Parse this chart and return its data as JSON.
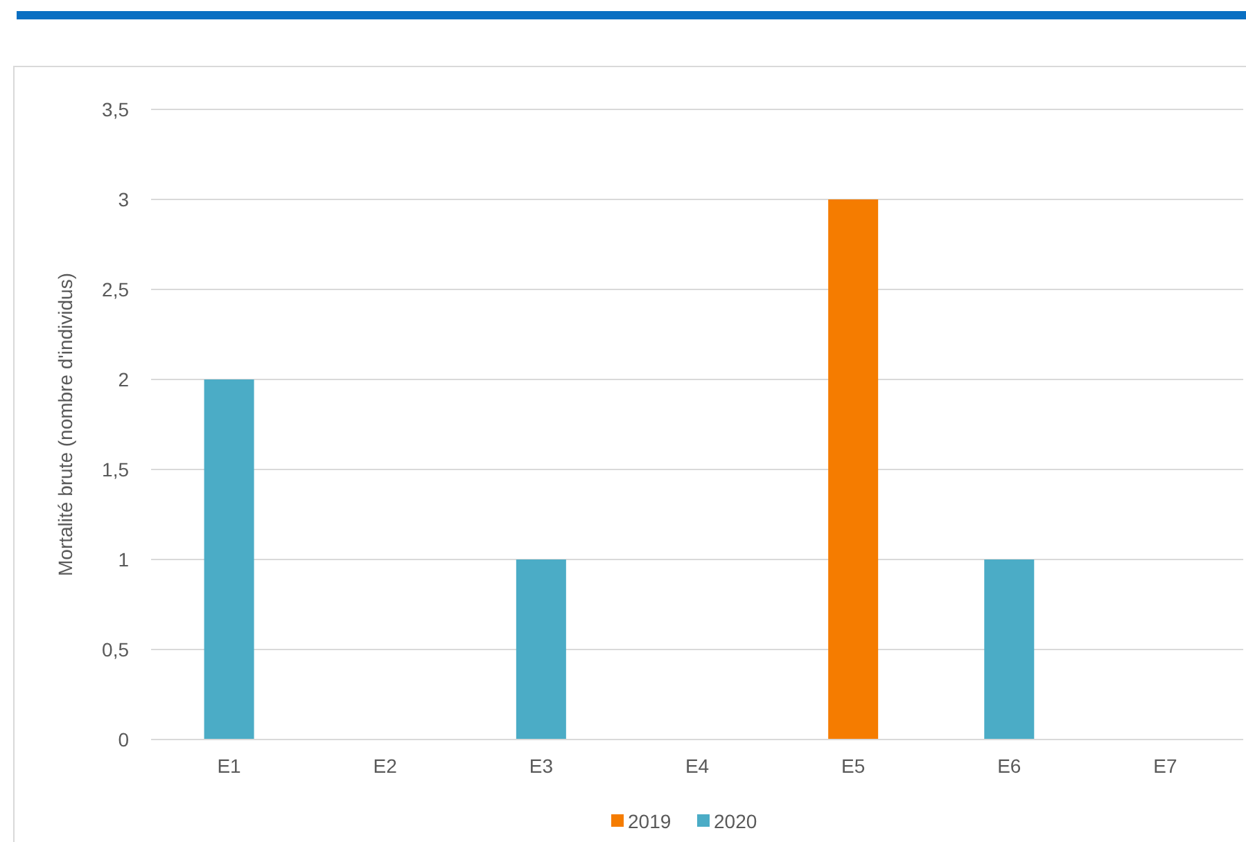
{
  "chart_data": {
    "type": "bar",
    "ylabel": "Mortalité brute (nombre d'individus)",
    "categories": [
      "E1",
      "E2",
      "E3",
      "E4",
      "E5",
      "E6",
      "E7"
    ],
    "series": [
      {
        "name": "2019",
        "color": "#f57c00",
        "values": [
          null,
          null,
          null,
          null,
          3,
          null,
          null
        ]
      },
      {
        "name": "2020",
        "color": "#4bacc6",
        "values": [
          2,
          null,
          1,
          null,
          null,
          1,
          null
        ]
      }
    ],
    "ylim": [
      0,
      3.5
    ],
    "yticks": [
      0,
      {
        "value": 0.5,
        "label": "0,5"
      },
      1,
      {
        "value": 1.5,
        "label": "1,5"
      },
      2,
      {
        "value": 2.5,
        "label": "2,5"
      },
      3,
      {
        "value": 3.5,
        "label": "3,5"
      }
    ],
    "grid": "y",
    "legend": "bottom"
  }
}
